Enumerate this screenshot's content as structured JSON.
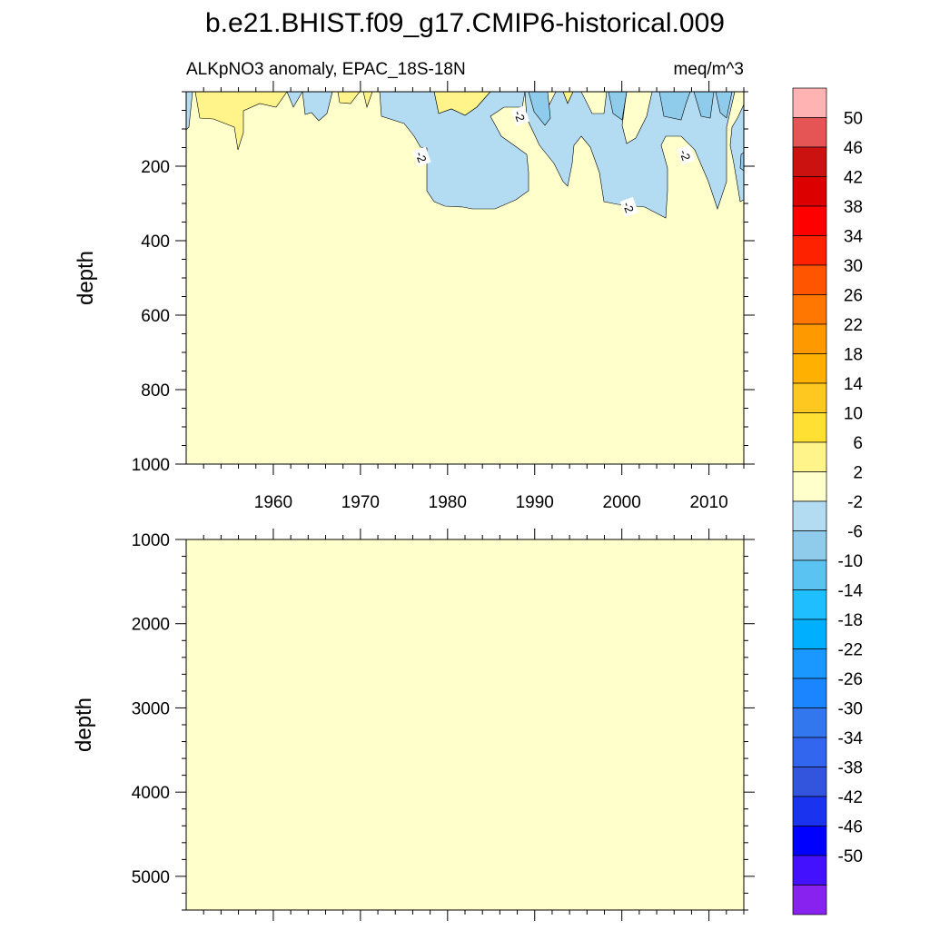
{
  "title": "b.e21.BHIST.f09_g17.CMIP6-historical.009",
  "chart_data": {
    "type": "heatmap",
    "variable": "ALKpNO3 anomaly, EPAC_18S-18N",
    "units": "meq/m^3",
    "x_range": [
      1950,
      2014
    ],
    "x_ticks": [
      1960,
      1970,
      1980,
      1990,
      2000,
      2010
    ],
    "colors": {
      "background": "#ffffcc",
      "positive_2_6": "#fff48a",
      "negative_m2_m6": "#b3dcf2",
      "negative_m6_m10": "#8fcbeb",
      "contour_line": "#000000"
    },
    "panels": [
      {
        "ylabel": "depth",
        "y_range": [
          0,
          1000
        ],
        "y_ticks": [
          200,
          400,
          600,
          800,
          1000
        ],
        "contour_labels": [
          {
            "x": 1977.0,
            "y": 175,
            "text": "-2"
          },
          {
            "x": 1988.3,
            "y": 65,
            "text": "-2"
          },
          {
            "x": 2000.8,
            "y": 310,
            "text": "-2"
          },
          {
            "x": 2007.3,
            "y": 170,
            "text": "-2"
          }
        ]
      },
      {
        "ylabel": "depth",
        "y_range": [
          1000,
          5400
        ],
        "y_ticks": [
          1000,
          2000,
          3000,
          4000,
          5000
        ],
        "contour_labels": []
      }
    ],
    "colorbar": {
      "labels": [
        "50",
        "46",
        "42",
        "38",
        "34",
        "30",
        "26",
        "22",
        "18",
        "14",
        "10",
        "6",
        "2",
        "-2",
        "-6",
        "-10",
        "-14",
        "-18",
        "-22",
        "-26",
        "-30",
        "-34",
        "-38",
        "-42",
        "-46",
        "-50"
      ],
      "colors": [
        "#ffb3b3",
        "#e65555",
        "#cc1111",
        "#dd0000",
        "#ff0000",
        "#ff2200",
        "#ff5500",
        "#ff7700",
        "#ff9900",
        "#ffb000",
        "#ffc820",
        "#ffe033",
        "#fff48a",
        "#ffffcc",
        "#b3dcf2",
        "#8fcbeb",
        "#5bc3f2",
        "#1fbfff",
        "#00b0ff",
        "#1a98ff",
        "#1a85ff",
        "#3377ee",
        "#3366ee",
        "#3355dd",
        "#1a33ee",
        "#0000ff",
        "#4411ff",
        "#8822ee"
      ]
    }
  }
}
